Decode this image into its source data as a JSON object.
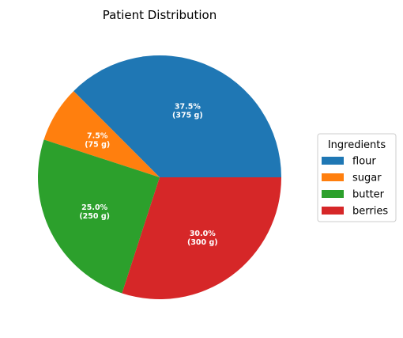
{
  "chart_data": {
    "type": "pie",
    "title": "Patient Distribution",
    "unit": "g",
    "categories": [
      "flour",
      "sugar",
      "butter",
      "berries"
    ],
    "values": [
      375,
      75,
      250,
      300
    ],
    "percent_labels": [
      "37.5%",
      "7.5%",
      "25.0%",
      "30.0%"
    ],
    "value_labels": [
      "(375 g)",
      "(75 g)",
      "(250 g)",
      "(300 g)"
    ],
    "colors": [
      "#1f77b4",
      "#ff7f0e",
      "#2ca02c",
      "#d62728"
    ],
    "start_angle_deg": 0,
    "direction": "counterclockwise",
    "legend": {
      "title": "Ingredients",
      "position": "center-right",
      "entries": [
        "flour",
        "sugar",
        "butter",
        "berries"
      ]
    }
  }
}
